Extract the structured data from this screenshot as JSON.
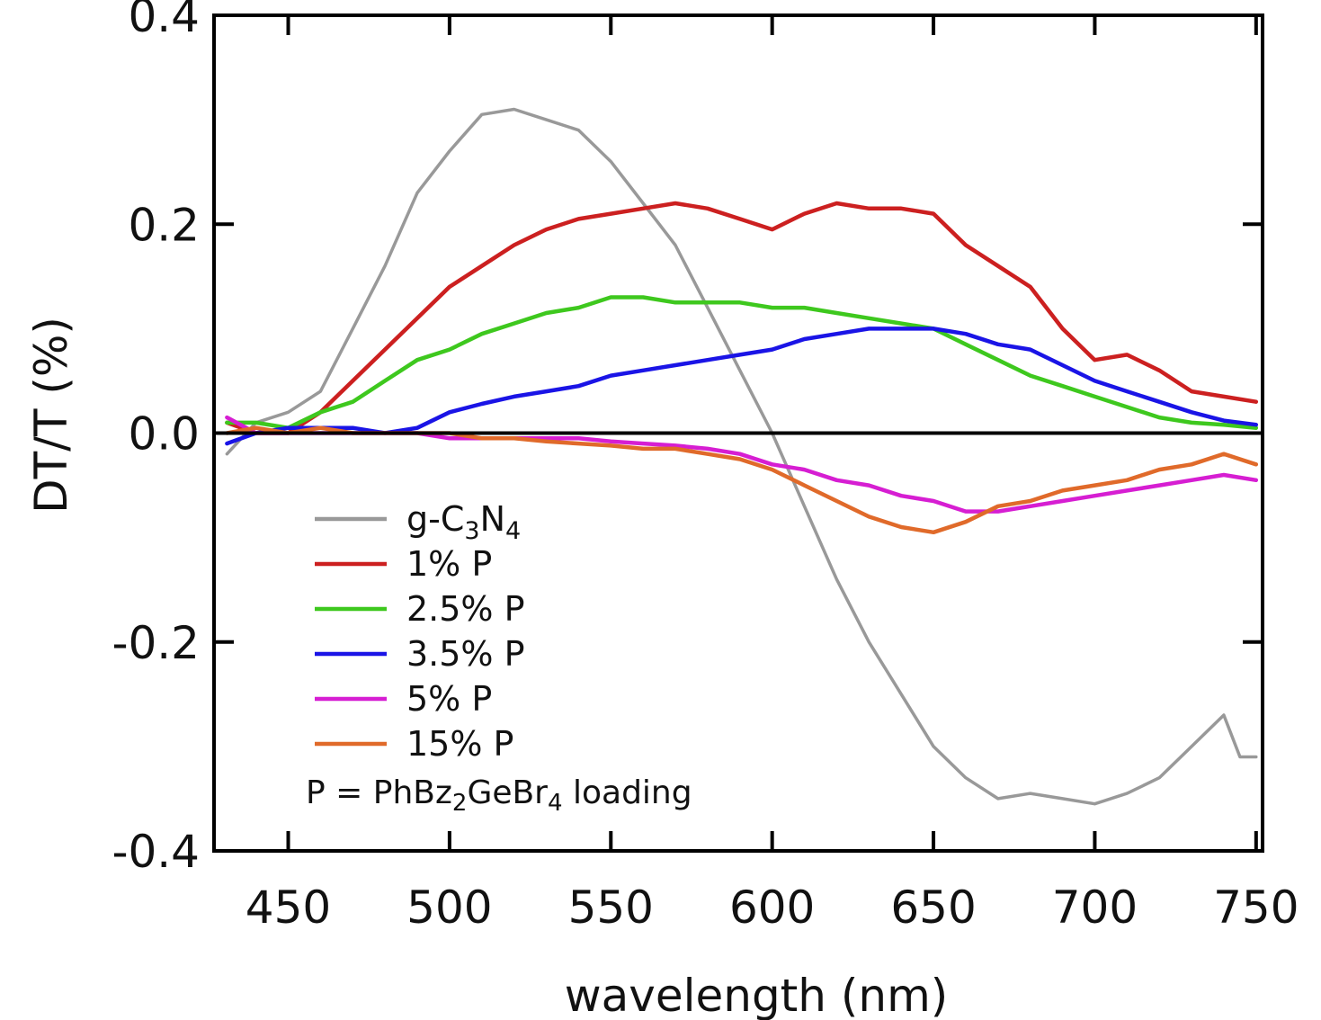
{
  "chart_data": {
    "type": "line",
    "title": "",
    "xlabel": "wavelength (nm)",
    "ylabel": "DT/T (%)",
    "xlim": [
      427,
      752
    ],
    "ylim": [
      -0.4,
      0.4
    ],
    "xticks": [
      450,
      500,
      550,
      600,
      650,
      700,
      750
    ],
    "yticks": [
      0.4,
      0.2,
      0.0,
      -0.2,
      -0.4
    ],
    "xtick_labels": [
      "450",
      "500",
      "550",
      "600",
      "650",
      "700",
      "750"
    ],
    "ytick_labels": [
      "0.4",
      "0.2",
      "0.0",
      "-0.2",
      "-0.4"
    ],
    "zero_line": true,
    "grid": false,
    "legend_position": "lower-left",
    "legend_note": {
      "prefix": "P = PhBz",
      "sub1": "2",
      "mid": "GeBr",
      "sub2": "4",
      "suffix": " loading"
    },
    "series": [
      {
        "name": "g-C3N4",
        "legend": {
          "base1": "g-C",
          "sub1": "3",
          "base2": "N",
          "sub2": "4"
        },
        "color": "#999999",
        "x": [
          431,
          440,
          450,
          460,
          470,
          480,
          490,
          500,
          510,
          520,
          530,
          540,
          550,
          560,
          570,
          580,
          590,
          600,
          610,
          620,
          630,
          640,
          650,
          660,
          670,
          680,
          690,
          700,
          710,
          720,
          730,
          740,
          745,
          750
        ],
        "y": [
          -0.02,
          0.01,
          0.02,
          0.04,
          0.1,
          0.16,
          0.23,
          0.27,
          0.305,
          0.31,
          0.3,
          0.29,
          0.26,
          0.22,
          0.18,
          0.12,
          0.06,
          0.0,
          -0.07,
          -0.14,
          -0.2,
          -0.25,
          -0.3,
          -0.33,
          -0.35,
          -0.345,
          -0.35,
          -0.355,
          -0.345,
          -0.33,
          -0.3,
          -0.27,
          -0.31,
          -0.31
        ]
      },
      {
        "name": "1% P",
        "color": "#cc2020",
        "x": [
          431,
          440,
          450,
          460,
          470,
          480,
          490,
          500,
          510,
          520,
          530,
          540,
          550,
          560,
          570,
          580,
          590,
          600,
          610,
          620,
          630,
          640,
          650,
          660,
          670,
          680,
          690,
          700,
          710,
          720,
          730,
          740,
          750
        ],
        "y": [
          0.01,
          0.0,
          0.0,
          0.02,
          0.05,
          0.08,
          0.11,
          0.14,
          0.16,
          0.18,
          0.195,
          0.205,
          0.21,
          0.215,
          0.22,
          0.215,
          0.205,
          0.195,
          0.21,
          0.22,
          0.215,
          0.215,
          0.21,
          0.18,
          0.16,
          0.14,
          0.1,
          0.07,
          0.075,
          0.06,
          0.04,
          0.035,
          0.03
        ]
      },
      {
        "name": "2.5% P",
        "color": "#3ec81e",
        "x": [
          431,
          440,
          450,
          460,
          470,
          480,
          490,
          500,
          510,
          520,
          530,
          540,
          550,
          560,
          570,
          580,
          590,
          600,
          610,
          620,
          630,
          640,
          650,
          660,
          670,
          680,
          690,
          700,
          710,
          720,
          730,
          740,
          750
        ],
        "y": [
          0.01,
          0.01,
          0.005,
          0.02,
          0.03,
          0.05,
          0.07,
          0.08,
          0.095,
          0.105,
          0.115,
          0.12,
          0.13,
          0.13,
          0.125,
          0.125,
          0.125,
          0.12,
          0.12,
          0.115,
          0.11,
          0.105,
          0.1,
          0.085,
          0.07,
          0.055,
          0.045,
          0.035,
          0.025,
          0.015,
          0.01,
          0.008,
          0.005
        ]
      },
      {
        "name": "3.5% P",
        "color": "#1a14e6",
        "x": [
          431,
          440,
          450,
          460,
          470,
          480,
          490,
          500,
          510,
          520,
          530,
          540,
          550,
          560,
          570,
          580,
          590,
          600,
          610,
          620,
          630,
          640,
          650,
          660,
          670,
          680,
          690,
          700,
          710,
          720,
          730,
          740,
          750
        ],
        "y": [
          -0.01,
          0.0,
          0.005,
          0.005,
          0.005,
          0.0,
          0.005,
          0.02,
          0.028,
          0.035,
          0.04,
          0.045,
          0.055,
          0.06,
          0.065,
          0.07,
          0.075,
          0.08,
          0.09,
          0.095,
          0.1,
          0.1,
          0.1,
          0.095,
          0.085,
          0.08,
          0.065,
          0.05,
          0.04,
          0.03,
          0.02,
          0.012,
          0.008
        ]
      },
      {
        "name": "5% P",
        "color": "#d61ed2",
        "x": [
          431,
          440,
          450,
          460,
          470,
          480,
          490,
          500,
          510,
          520,
          530,
          540,
          550,
          560,
          570,
          580,
          590,
          600,
          610,
          620,
          630,
          640,
          650,
          660,
          670,
          680,
          690,
          700,
          710,
          720,
          730,
          740,
          750
        ],
        "y": [
          0.015,
          0.0,
          0.0,
          0.0,
          0.0,
          0.0,
          0.0,
          -0.005,
          -0.005,
          -0.005,
          -0.005,
          -0.005,
          -0.008,
          -0.01,
          -0.012,
          -0.015,
          -0.02,
          -0.03,
          -0.035,
          -0.045,
          -0.05,
          -0.06,
          -0.065,
          -0.075,
          -0.075,
          -0.07,
          -0.065,
          -0.06,
          -0.055,
          -0.05,
          -0.045,
          -0.04,
          -0.045
        ]
      },
      {
        "name": "15% P",
        "color": "#e06a2a",
        "x": [
          431,
          440,
          450,
          460,
          470,
          480,
          490,
          500,
          510,
          520,
          530,
          540,
          550,
          560,
          570,
          580,
          590,
          600,
          610,
          620,
          630,
          640,
          650,
          660,
          670,
          680,
          690,
          700,
          710,
          720,
          730,
          740,
          750
        ],
        "y": [
          0.0,
          0.005,
          0.0,
          0.005,
          0.0,
          0.0,
          0.0,
          0.0,
          -0.005,
          -0.005,
          -0.008,
          -0.01,
          -0.012,
          -0.015,
          -0.015,
          -0.02,
          -0.025,
          -0.035,
          -0.05,
          -0.065,
          -0.08,
          -0.09,
          -0.095,
          -0.085,
          -0.07,
          -0.065,
          -0.055,
          -0.05,
          -0.045,
          -0.035,
          -0.03,
          -0.02,
          -0.03
        ]
      }
    ]
  }
}
